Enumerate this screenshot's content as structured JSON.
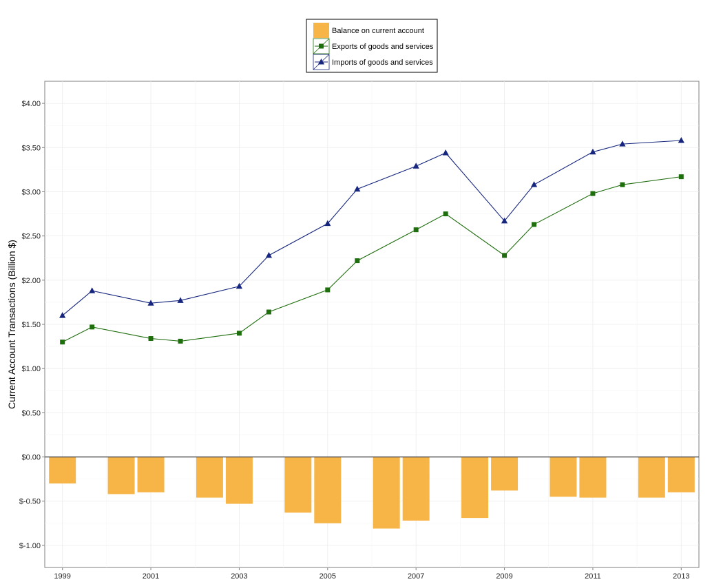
{
  "chart_data": {
    "type": "bar+line",
    "title": "",
    "xlabel": "",
    "ylabel": "Current Account Transactions (Billion $)",
    "xlim": [
      1998.6,
      2013.4
    ],
    "ylim": [
      -1.25,
      4.25
    ],
    "x_ticks": [
      1999,
      2001,
      2003,
      2005,
      2007,
      2009,
      2011,
      2013
    ],
    "x_tick_labels": [
      "1999",
      "2001",
      "2003",
      "2005",
      "2007",
      "2009",
      "2011",
      "2013"
    ],
    "y_ticks": [
      -1.0,
      -0.5,
      0.0,
      0.5,
      1.0,
      1.5,
      2.0,
      2.5,
      3.0,
      3.5,
      4.0
    ],
    "y_tick_labels": [
      "$-1.00",
      "$-0.50",
      "$0.00",
      "$0.50",
      "$1.00",
      "$1.50",
      "$2.00",
      "$2.50",
      "$3.00",
      "$3.50",
      "$4.00"
    ],
    "grid": true,
    "legend_position": "top",
    "series": [
      {
        "name": "Balance on current account",
        "kind": "bar",
        "color": "#F7B547",
        "points": [
          {
            "x": 1999.0,
            "y": -0.3
          },
          {
            "x": 2000.33,
            "y": -0.42
          },
          {
            "x": 2001.0,
            "y": -0.4
          },
          {
            "x": 2002.33,
            "y": -0.46
          },
          {
            "x": 2003.0,
            "y": -0.53
          },
          {
            "x": 2004.33,
            "y": -0.63
          },
          {
            "x": 2005.0,
            "y": -0.75
          },
          {
            "x": 2006.33,
            "y": -0.81
          },
          {
            "x": 2007.0,
            "y": -0.72
          },
          {
            "x": 2008.33,
            "y": -0.69
          },
          {
            "x": 2009.0,
            "y": -0.38
          },
          {
            "x": 2010.33,
            "y": -0.45
          },
          {
            "x": 2011.0,
            "y": -0.46
          },
          {
            "x": 2012.33,
            "y": -0.46
          },
          {
            "x": 2013.0,
            "y": -0.4
          }
        ]
      },
      {
        "name": "Exports of goods and services",
        "kind": "line",
        "marker": "square",
        "color": "#1F6E0E",
        "points": [
          {
            "x": 1999.0,
            "y": 1.3
          },
          {
            "x": 1999.67,
            "y": 1.47
          },
          {
            "x": 2001.0,
            "y": 1.34
          },
          {
            "x": 2001.67,
            "y": 1.31
          },
          {
            "x": 2003.0,
            "y": 1.4
          },
          {
            "x": 2003.67,
            "y": 1.64
          },
          {
            "x": 2005.0,
            "y": 1.89
          },
          {
            "x": 2005.67,
            "y": 2.22
          },
          {
            "x": 2007.0,
            "y": 2.57
          },
          {
            "x": 2007.67,
            "y": 2.75
          },
          {
            "x": 2009.0,
            "y": 2.28
          },
          {
            "x": 2009.67,
            "y": 2.63
          },
          {
            "x": 2011.0,
            "y": 2.98
          },
          {
            "x": 2011.67,
            "y": 3.08
          },
          {
            "x": 2013.0,
            "y": 3.17
          }
        ]
      },
      {
        "name": "Imports of goods and services",
        "kind": "line",
        "marker": "triangle",
        "color": "#16267E",
        "points": [
          {
            "x": 1999.0,
            "y": 1.6
          },
          {
            "x": 1999.67,
            "y": 1.88
          },
          {
            "x": 2001.0,
            "y": 1.74
          },
          {
            "x": 2001.67,
            "y": 1.77
          },
          {
            "x": 2003.0,
            "y": 1.93
          },
          {
            "x": 2003.67,
            "y": 2.28
          },
          {
            "x": 2005.0,
            "y": 2.64
          },
          {
            "x": 2005.67,
            "y": 3.03
          },
          {
            "x": 2007.0,
            "y": 3.29
          },
          {
            "x": 2007.67,
            "y": 3.44
          },
          {
            "x": 2009.0,
            "y": 2.67
          },
          {
            "x": 2009.67,
            "y": 3.08
          },
          {
            "x": 2011.0,
            "y": 3.45
          },
          {
            "x": 2011.67,
            "y": 3.54
          },
          {
            "x": 2013.0,
            "y": 3.58
          }
        ]
      }
    ]
  }
}
